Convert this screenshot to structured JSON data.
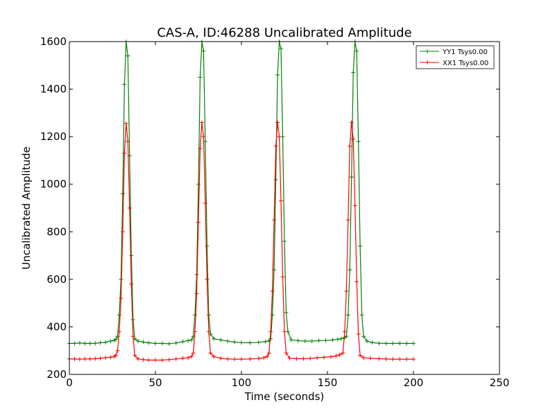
{
  "chart_data": {
    "type": "line",
    "title": "CAS-A, ID:46288 Uncalibrated Amplitude",
    "xlabel": "Time (seconds)",
    "ylabel": "Uncalibrated Amplitude",
    "xlim": [
      0,
      250
    ],
    "ylim": [
      200,
      1600
    ],
    "xticks": [
      0,
      50,
      100,
      150,
      200,
      250
    ],
    "yticks": [
      200,
      400,
      600,
      800,
      1000,
      1200,
      1400,
      1600
    ],
    "xtick_labels": [
      "0",
      "50",
      "100",
      "150",
      "200",
      "250"
    ],
    "ytick_labels": [
      "200",
      "400",
      "600",
      "800",
      "1000",
      "1200",
      "1400",
      "1600"
    ],
    "grid": false,
    "legend_position": "top-right",
    "marker": "+",
    "series": [
      {
        "name": "YY1 Tsys0.00",
        "color": "#008000",
        "points": [
          [
            0,
            330
          ],
          [
            3,
            330
          ],
          [
            6,
            332
          ],
          [
            9,
            330
          ],
          [
            12,
            330
          ],
          [
            15,
            331
          ],
          [
            18,
            333
          ],
          [
            21,
            335
          ],
          [
            24,
            340
          ],
          [
            26,
            343
          ],
          [
            27,
            347
          ],
          [
            28,
            360
          ],
          [
            29,
            450
          ],
          [
            30,
            600
          ],
          [
            31,
            960
          ],
          [
            32,
            1420
          ],
          [
            33,
            1600
          ],
          [
            34,
            1540
          ],
          [
            35,
            1120
          ],
          [
            36,
            700
          ],
          [
            37,
            430
          ],
          [
            38,
            350
          ],
          [
            40,
            340
          ],
          [
            43,
            336
          ],
          [
            46,
            333
          ],
          [
            50,
            330
          ],
          [
            54,
            330
          ],
          [
            58,
            329
          ],
          [
            62,
            332
          ],
          [
            66,
            338
          ],
          [
            69,
            342
          ],
          [
            71,
            345
          ],
          [
            72,
            360
          ],
          [
            73,
            450
          ],
          [
            74,
            620
          ],
          [
            75,
            1000
          ],
          [
            76,
            1450
          ],
          [
            77,
            1600
          ],
          [
            78,
            1560
          ],
          [
            79,
            1180
          ],
          [
            80,
            740
          ],
          [
            81,
            450
          ],
          [
            82,
            370
          ],
          [
            84,
            350
          ],
          [
            88,
            345
          ],
          [
            92,
            340
          ],
          [
            96,
            336
          ],
          [
            100,
            334
          ],
          [
            105,
            333
          ],
          [
            110,
            335
          ],
          [
            114,
            338
          ],
          [
            116,
            341
          ],
          [
            117,
            350
          ],
          [
            118,
            450
          ],
          [
            119,
            640
          ],
          [
            120,
            1020
          ],
          [
            121,
            1460
          ],
          [
            122,
            1600
          ],
          [
            123,
            1570
          ],
          [
            124,
            1200
          ],
          [
            125,
            760
          ],
          [
            126,
            460
          ],
          [
            127,
            380
          ],
          [
            129,
            345
          ],
          [
            133,
            342
          ],
          [
            137,
            340
          ],
          [
            141,
            340
          ],
          [
            145,
            342
          ],
          [
            149,
            343
          ],
          [
            153,
            345
          ],
          [
            156,
            348
          ],
          [
            158,
            350
          ],
          [
            160,
            355
          ],
          [
            161,
            360
          ],
          [
            162,
            450
          ],
          [
            163,
            640
          ],
          [
            164,
            1030
          ],
          [
            165,
            1470
          ],
          [
            166,
            1600
          ],
          [
            167,
            1560
          ],
          [
            168,
            1180
          ],
          [
            169,
            740
          ],
          [
            170,
            450
          ],
          [
            171,
            360
          ],
          [
            173,
            340
          ],
          [
            176,
            334
          ],
          [
            180,
            331
          ],
          [
            184,
            330
          ],
          [
            188,
            330
          ],
          [
            192,
            331
          ],
          [
            196,
            330
          ],
          [
            200,
            330
          ]
        ]
      },
      {
        "name": "XX1 Tsys0.00",
        "color": "#ff0000",
        "points": [
          [
            0,
            265
          ],
          [
            3,
            265
          ],
          [
            6,
            264
          ],
          [
            9,
            265
          ],
          [
            12,
            265
          ],
          [
            15,
            266
          ],
          [
            18,
            268
          ],
          [
            21,
            270
          ],
          [
            24,
            272
          ],
          [
            26,
            275
          ],
          [
            27,
            280
          ],
          [
            28,
            300
          ],
          [
            29,
            380
          ],
          [
            30,
            520
          ],
          [
            31,
            800
          ],
          [
            32,
            1130
          ],
          [
            33,
            1255
          ],
          [
            34,
            1180
          ],
          [
            35,
            900
          ],
          [
            36,
            580
          ],
          [
            37,
            360
          ],
          [
            38,
            280
          ],
          [
            40,
            265
          ],
          [
            43,
            262
          ],
          [
            46,
            260
          ],
          [
            50,
            260
          ],
          [
            54,
            260
          ],
          [
            58,
            262
          ],
          [
            62,
            265
          ],
          [
            66,
            268
          ],
          [
            69,
            270
          ],
          [
            71,
            275
          ],
          [
            72,
            290
          ],
          [
            73,
            380
          ],
          [
            74,
            540
          ],
          [
            75,
            840
          ],
          [
            76,
            1150
          ],
          [
            77,
            1260
          ],
          [
            78,
            1200
          ],
          [
            79,
            920
          ],
          [
            80,
            600
          ],
          [
            81,
            380
          ],
          [
            82,
            290
          ],
          [
            84,
            275
          ],
          [
            88,
            268
          ],
          [
            92,
            265
          ],
          [
            96,
            264
          ],
          [
            100,
            264
          ],
          [
            105,
            265
          ],
          [
            110,
            267
          ],
          [
            113,
            270
          ],
          [
            115,
            276
          ],
          [
            116,
            290
          ],
          [
            117,
            380
          ],
          [
            118,
            550
          ],
          [
            119,
            850
          ],
          [
            120,
            1160
          ],
          [
            121,
            1260
          ],
          [
            122,
            1200
          ],
          [
            123,
            930
          ],
          [
            124,
            610
          ],
          [
            125,
            380
          ],
          [
            126,
            290
          ],
          [
            128,
            268
          ],
          [
            132,
            266
          ],
          [
            136,
            266
          ],
          [
            140,
            267
          ],
          [
            144,
            270
          ],
          [
            148,
            272
          ],
          [
            152,
            274
          ],
          [
            155,
            278
          ],
          [
            157,
            282
          ],
          [
            159,
            290
          ],
          [
            160,
            380
          ],
          [
            161,
            550
          ],
          [
            162,
            850
          ],
          [
            163,
            1160
          ],
          [
            164,
            1260
          ],
          [
            165,
            1190
          ],
          [
            166,
            910
          ],
          [
            167,
            590
          ],
          [
            168,
            370
          ],
          [
            169,
            280
          ],
          [
            171,
            270
          ],
          [
            175,
            268
          ],
          [
            180,
            266
          ],
          [
            184,
            265
          ],
          [
            188,
            264
          ],
          [
            192,
            264
          ],
          [
            196,
            264
          ],
          [
            200,
            264
          ]
        ]
      }
    ]
  }
}
